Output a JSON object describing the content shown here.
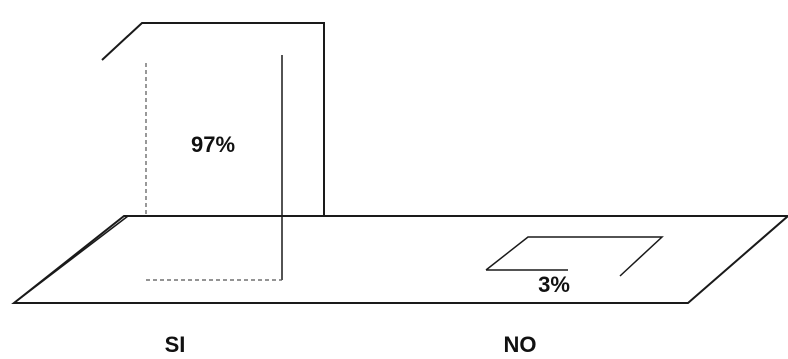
{
  "chart_data": {
    "type": "bar",
    "style": "3d-outline",
    "categories": [
      "SI",
      "NO"
    ],
    "values": [
      97,
      3
    ],
    "data_labels": [
      "97%",
      "3%"
    ],
    "ylim": [
      0,
      100
    ],
    "grid": false,
    "legend": "none",
    "colors": {
      "stroke": "#1a1a1a",
      "background": "#ffffff"
    }
  }
}
